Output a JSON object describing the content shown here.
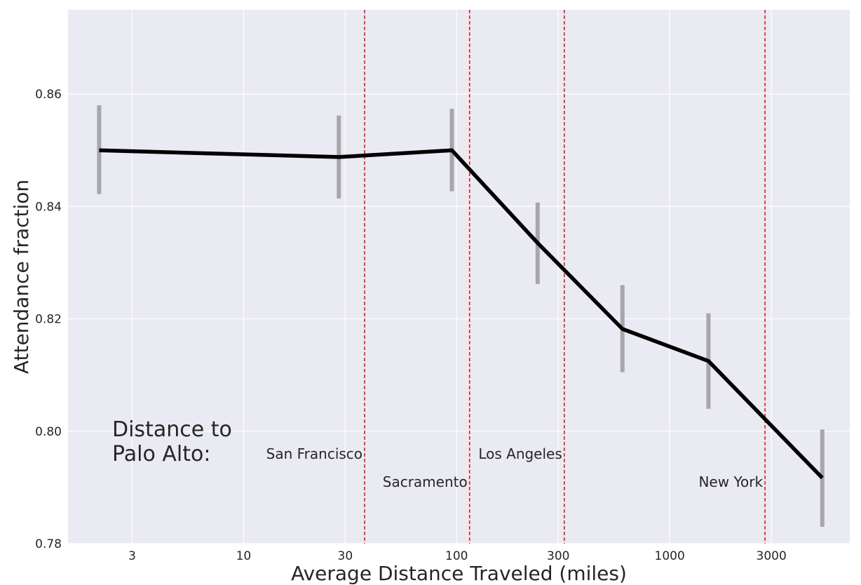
{
  "chart_data": {
    "type": "line",
    "xlabel": "Average Distance Traveled (miles)",
    "ylabel": "Attendance fraction",
    "x_scale": "log",
    "xlim": [
      1.5,
      7000
    ],
    "ylim": [
      0.78,
      0.875
    ],
    "x_ticks": [
      3,
      10,
      30,
      100,
      300,
      1000,
      3000
    ],
    "x_tick_labels": [
      "3",
      "10",
      "30",
      "100",
      "300",
      "1000",
      "3000"
    ],
    "y_ticks": [
      0.78,
      0.8,
      0.82,
      0.84,
      0.86
    ],
    "y_tick_labels": [
      "0.78",
      "0.80",
      "0.82",
      "0.84",
      "0.86"
    ],
    "grid": true,
    "background": "#eaeaf2",
    "line_color": "#000000",
    "errorbar_color": "#a7a7ab",
    "vline_color": "#e41a1c",
    "series": [
      {
        "x": [
          2.1,
          28,
          95,
          240,
          600,
          1520,
          5200
        ],
        "y": [
          0.85,
          0.8488,
          0.85,
          0.8335,
          0.8182,
          0.8125,
          0.7917
        ],
        "err_low": [
          0.8422,
          0.8414,
          0.8427,
          0.8262,
          0.8105,
          0.804,
          0.783
        ],
        "err_high": [
          0.858,
          0.8562,
          0.8574,
          0.8407,
          0.826,
          0.821,
          0.8003
        ]
      }
    ],
    "annotation_title": [
      "Distance to",
      "Palo Alto:"
    ],
    "reference_lines": [
      {
        "label": "San Francisco",
        "x": 37,
        "label_row": 1
      },
      {
        "label": "Sacramento",
        "x": 115,
        "label_row": 2
      },
      {
        "label": "Los Angeles",
        "x": 320,
        "label_row": 1
      },
      {
        "label": "New York",
        "x": 2800,
        "label_row": 2
      }
    ]
  }
}
